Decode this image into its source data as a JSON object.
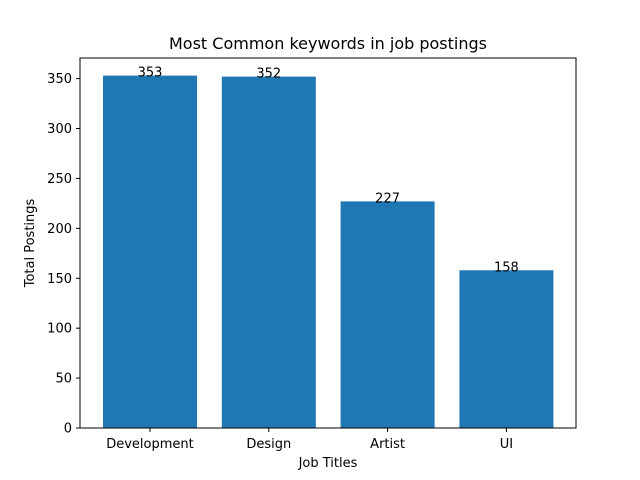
{
  "chart_data": {
    "type": "bar",
    "title": "Most Common keywords in job postings",
    "xlabel": "Job Titles",
    "ylabel": "Total Postings",
    "categories": [
      "Development",
      "Design",
      "Artist",
      "UI"
    ],
    "values": [
      353,
      352,
      227,
      158
    ],
    "data_labels": [
      "353",
      "352",
      "227",
      "158"
    ],
    "ylim": [
      0,
      370.65
    ],
    "yticks": [
      0,
      50,
      100,
      150,
      200,
      250,
      300,
      350
    ],
    "grid": false,
    "bar_color": "#1f77b4"
  }
}
